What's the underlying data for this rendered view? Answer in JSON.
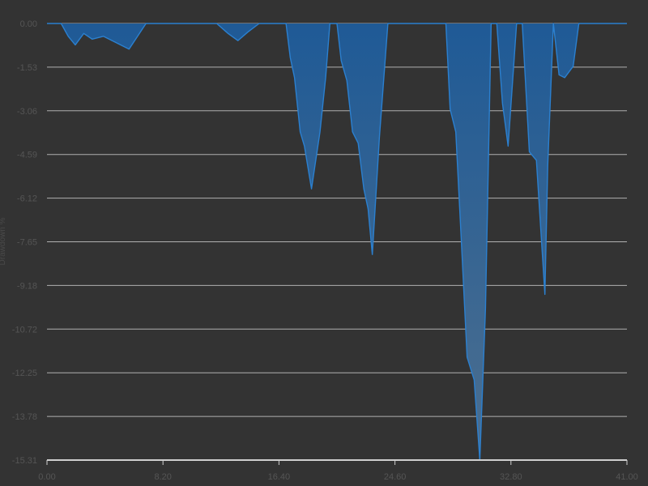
{
  "chart_data": {
    "type": "area",
    "title": "",
    "xlabel": "",
    "ylabel": "Drawdown %",
    "xlim": [
      0,
      41
    ],
    "ylim": [
      -15.31,
      0
    ],
    "x_ticks": [
      "0.00",
      "8.20",
      "16.40",
      "24.60",
      "32.80",
      "41.00"
    ],
    "y_ticks": [
      "0.00",
      "-1.53",
      "-3.06",
      "-4.59",
      "-6.12",
      "-7.65",
      "-9.18",
      "-10.72",
      "-12.25",
      "-13.78",
      "-15.31"
    ],
    "grid": true,
    "colors": {
      "fill_top": "#1f5a96",
      "fill_bottom": "#4d6f8f",
      "stroke": "#2b80d0",
      "background": "#333333"
    },
    "series": [
      {
        "x": [
          0,
          1.0,
          1.5,
          2.0,
          2.6,
          3.2,
          4.0,
          5.0,
          5.8,
          6.4,
          7.0,
          7.6,
          8.2,
          9.0,
          12.0,
          12.8,
          13.5,
          14.2,
          15.0,
          15.6,
          16.4,
          16.9,
          17.2,
          17.5,
          17.9,
          18.2,
          18.7,
          19.3,
          19.7,
          20.0,
          20.5,
          20.8,
          21.2,
          21.6,
          22.0,
          22.4,
          22.7,
          23.0,
          23.5,
          24.1,
          24.4,
          24.7,
          25.0,
          25.4,
          25.9,
          26.2,
          28.2,
          28.5,
          28.9,
          29.3,
          29.7,
          30.2,
          30.6,
          31.0,
          31.4,
          31.8,
          32.2,
          32.6,
          33.2,
          33.6,
          34.1,
          34.6,
          35.2,
          35.4,
          35.8,
          36.2,
          36.6,
          37.2,
          37.6,
          38.1,
          38.7,
          39.2,
          41.0
        ],
        "y": [
          0,
          0,
          -0.45,
          -0.75,
          -0.35,
          -0.55,
          -0.45,
          -0.7,
          -0.9,
          -0.45,
          0,
          0,
          0,
          0,
          0,
          -0.35,
          -0.6,
          -0.3,
          0,
          0,
          0,
          0,
          -1.2,
          -1.9,
          -3.8,
          -4.3,
          -5.8,
          -3.8,
          -1.9,
          0,
          0,
          -1.3,
          -2.0,
          -3.8,
          -4.2,
          -5.8,
          -6.5,
          -8.1,
          -4.0,
          0,
          0,
          0,
          0,
          0,
          0,
          0,
          0,
          -3.0,
          -3.8,
          -7.7,
          -11.7,
          -12.5,
          -15.31,
          -10.0,
          0,
          0,
          -2.8,
          -4.3,
          0,
          0,
          -4.5,
          -4.8,
          -9.5,
          -5.0,
          0,
          -1.8,
          -1.9,
          -1.5,
          0,
          0,
          0,
          0,
          0
        ]
      }
    ]
  }
}
